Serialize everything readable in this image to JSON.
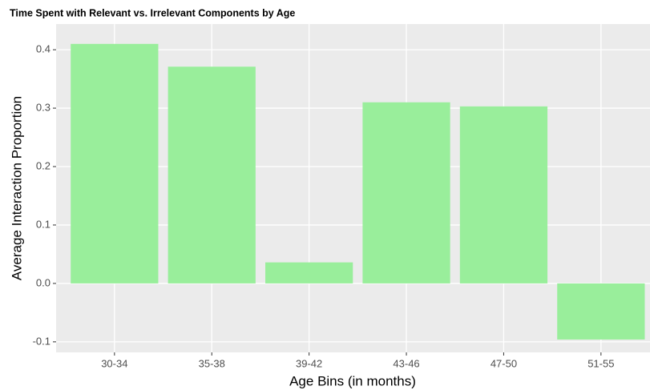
{
  "chart_data": {
    "type": "bar",
    "title": "Time Spent with Relevant vs. Irrelevant Components by Age",
    "x_label": "Age Bins (in months)",
    "y_label": "Average Interaction Proportion",
    "categories": [
      "30-34",
      "35-38",
      "39-42",
      "43-46",
      "47-50",
      "51-55"
    ],
    "values": [
      0.41,
      0.371,
      0.036,
      0.31,
      0.303,
      -0.096
    ],
    "color": "#99ee9b",
    "ylim": [
      -0.118,
      0.444
    ],
    "yticks": [
      -0.1,
      {
        "value": 0,
        "label": "0.0"
      },
      0.1,
      0.2,
      0.3,
      0.4
    ],
    "grid": true
  }
}
